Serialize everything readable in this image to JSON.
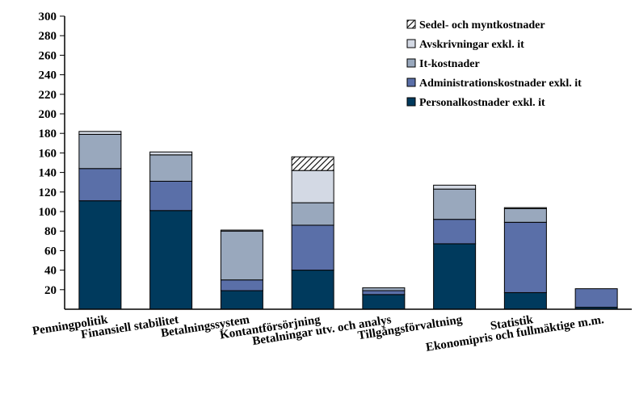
{
  "chart_data": {
    "type": "bar",
    "stacked": true,
    "title": "",
    "xlabel": "",
    "ylabel": "",
    "ylim": [
      0,
      300
    ],
    "yticks": [
      20,
      40,
      60,
      80,
      100,
      120,
      140,
      160,
      180,
      200,
      220,
      240,
      260,
      280,
      300
    ],
    "grid": false,
    "legend_position": "top-right",
    "categories": [
      "Penningpolitik",
      "Finansiell stabilitet",
      "Betalningssystem",
      "Kontantförsörjning",
      "Betalningar utv. och analys",
      "Tillgångsförvaltning",
      "Statistik",
      "Ekonomipris och fullmäktige m.m."
    ],
    "series": [
      {
        "name": "Personalkostnader exkl. it",
        "color": "#003a5d",
        "pattern": "solid",
        "values": [
          111,
          101,
          19,
          40,
          15,
          67,
          17,
          2
        ]
      },
      {
        "name": "Administrationskostnader exkl. it",
        "color": "#5a6fa8",
        "pattern": "solid",
        "values": [
          33,
          30,
          11,
          46,
          4,
          25,
          72,
          19
        ]
      },
      {
        "name": "It-kostnader",
        "color": "#99a8bd",
        "pattern": "solid",
        "values": [
          35,
          27,
          50,
          23,
          3,
          31,
          14,
          0
        ]
      },
      {
        "name": "Avskrivningar exkl. it",
        "color": "#d3d9e4",
        "pattern": "solid",
        "values": [
          3,
          3,
          1,
          33,
          0,
          4,
          1,
          0
        ]
      },
      {
        "name": "Sedel- och myntkostnader",
        "color": "#ffffff",
        "pattern": "hatch",
        "values": [
          0,
          0,
          0,
          14,
          0,
          0,
          0,
          0
        ]
      }
    ]
  }
}
